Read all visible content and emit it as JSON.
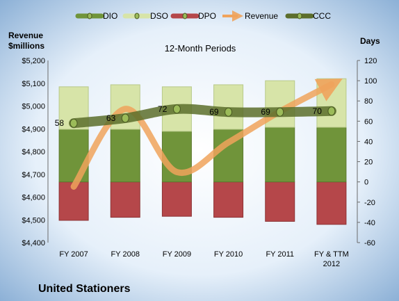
{
  "chart_data": {
    "type": "bar",
    "title": "12-Month Periods",
    "company": "United Stationers",
    "left_axis_label": [
      "Revenue",
      "$millions"
    ],
    "right_axis_label": "Days",
    "categories": [
      [
        "FY 2007"
      ],
      [
        "FY 2008"
      ],
      [
        "FY 2009"
      ],
      [
        "FY 2010"
      ],
      [
        "FY 2011"
      ],
      [
        "FY & TTM",
        "2012"
      ]
    ],
    "left_axis": {
      "min": 4400,
      "max": 5200,
      "step": 100,
      "prefix": "$"
    },
    "right_axis": {
      "min": -60,
      "max": 120,
      "step": 20
    },
    "legend_position": "top",
    "legend": [
      "DIO",
      "DSO",
      "DPO",
      "Revenue",
      "CCC"
    ],
    "series": [
      {
        "name": "DIO",
        "axis": "right",
        "kind": "stacked-bar",
        "color": "#70943a",
        "values": [
          52,
          52,
          50,
          52,
          54,
          54
        ]
      },
      {
        "name": "DSO",
        "axis": "right",
        "kind": "stacked-bar",
        "color": "#d7e4a8",
        "values": [
          42,
          44,
          44,
          44,
          46,
          48
        ]
      },
      {
        "name": "DPO",
        "axis": "right",
        "kind": "stacked-bar-negative",
        "color": "#b5474a",
        "values": [
          -38,
          -35,
          -34,
          -35,
          -39,
          -42
        ]
      },
      {
        "name": "Revenue",
        "axis": "left",
        "kind": "line-arrow",
        "color": "#f0a35c",
        "values": [
          4646,
          4987,
          4710,
          4840,
          4976,
          5095
        ]
      },
      {
        "name": "CCC",
        "axis": "right",
        "kind": "line",
        "color": "#5c6e2c",
        "values": [
          58,
          63,
          72,
          69,
          69,
          70
        ]
      }
    ],
    "data_labels": [
      "58",
      "63",
      "72",
      "69",
      "69",
      "70"
    ],
    "grid": false
  }
}
